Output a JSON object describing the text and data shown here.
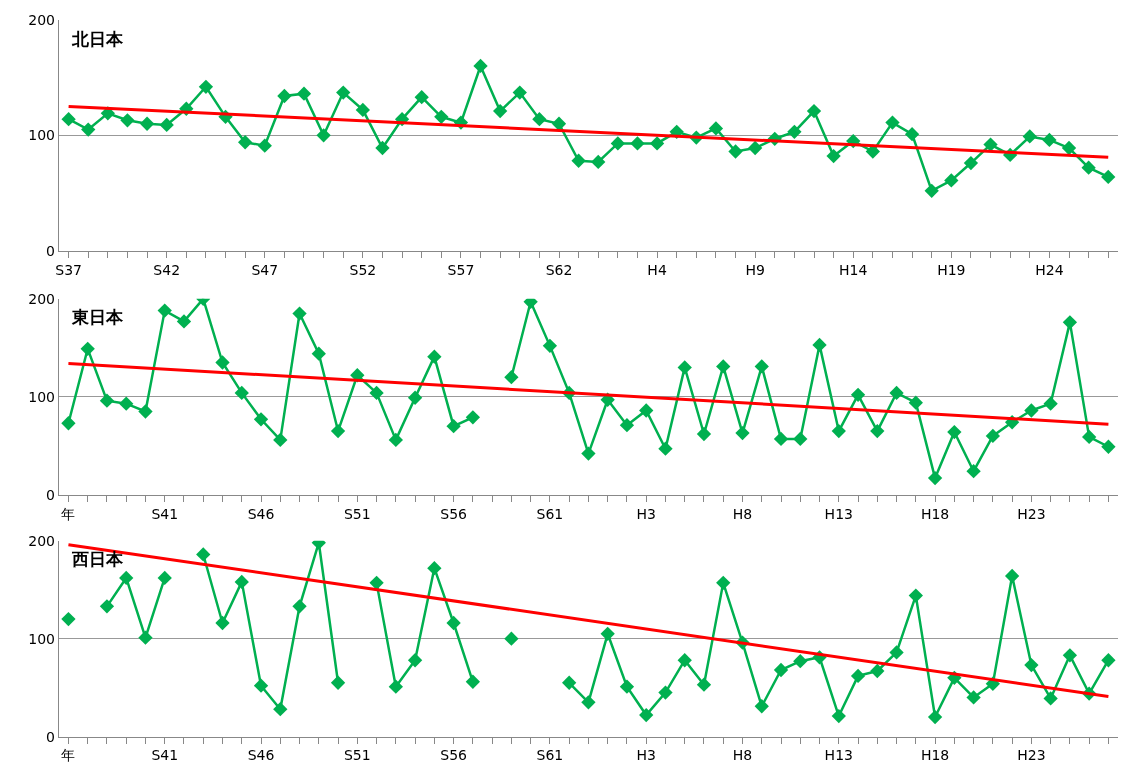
{
  "chart_data": [
    {
      "type": "line",
      "title": "北日本",
      "categories": [
        "S37",
        null,
        null,
        null,
        null,
        "S42",
        null,
        null,
        null,
        null,
        "S47",
        null,
        null,
        null,
        null,
        "S52",
        null,
        null,
        null,
        null,
        "S57",
        null,
        null,
        null,
        null,
        "S62",
        null,
        null,
        null,
        null,
        "H4",
        null,
        null,
        null,
        null,
        "H9",
        null,
        null,
        null,
        null,
        "H14",
        null,
        null,
        null,
        null,
        "H19",
        null,
        null,
        null,
        null,
        "H24",
        null,
        null,
        null
      ],
      "ylim": [
        0,
        200
      ],
      "yticks": [
        0,
        100,
        200
      ],
      "grid": "y",
      "marker": "diamond",
      "series": [
        {
          "color": "#00b050",
          "values": [
            114,
            105,
            119,
            113,
            110,
            109,
            123,
            142,
            116,
            94,
            91,
            134,
            136,
            100,
            137,
            122,
            89,
            114,
            133,
            116,
            111,
            160,
            121,
            137,
            114,
            110,
            78,
            77,
            93,
            93,
            93,
            103,
            98,
            106,
            86,
            89,
            97,
            103,
            121,
            82,
            95,
            86,
            111,
            101,
            52,
            61,
            76,
            92,
            83,
            99,
            96,
            89,
            72,
            64
          ]
        },
        {
          "color": "#ff0000",
          "marker": "none",
          "values": [
            125,
            null,
            null,
            null,
            null,
            null,
            null,
            null,
            null,
            null,
            null,
            null,
            null,
            null,
            null,
            null,
            null,
            null,
            null,
            null,
            null,
            null,
            null,
            null,
            null,
            null,
            null,
            null,
            null,
            null,
            null,
            null,
            null,
            null,
            null,
            null,
            null,
            null,
            null,
            null,
            null,
            null,
            null,
            null,
            null,
            null,
            null,
            null,
            null,
            null,
            null,
            null,
            null,
            81
          ]
        }
      ]
    },
    {
      "type": "line",
      "title": "東日本",
      "categories": [
        "年",
        null,
        null,
        null,
        null,
        "S41",
        null,
        null,
        null,
        null,
        "S46",
        null,
        null,
        null,
        null,
        "S51",
        null,
        null,
        null,
        null,
        "S56",
        null,
        null,
        null,
        null,
        "S61",
        null,
        null,
        null,
        null,
        "H3",
        null,
        null,
        null,
        null,
        "H8",
        null,
        null,
        null,
        null,
        "H13",
        null,
        null,
        null,
        null,
        "H18",
        null,
        null,
        null,
        null,
        "H23",
        null,
        null,
        null,
        null
      ],
      "ylim": [
        0,
        200
      ],
      "yticks": [
        0,
        100,
        200
      ],
      "grid": "y",
      "marker": "diamond",
      "series": [
        {
          "color": "#00b050",
          "values": [
            73,
            149,
            96,
            93,
            85,
            188,
            177,
            200,
            135,
            104,
            77,
            56,
            185,
            144,
            65,
            122,
            104,
            56,
            99,
            141,
            70,
            79,
            null,
            120,
            197,
            152,
            104,
            42,
            97,
            71,
            86,
            47,
            130,
            62,
            131,
            63,
            131,
            57,
            57,
            153,
            65,
            102,
            65,
            104,
            94,
            17,
            64,
            24,
            60,
            74,
            86,
            93,
            176,
            59,
            49
          ]
        },
        {
          "color": "#ff0000",
          "marker": "none",
          "values": [
            134,
            null,
            null,
            null,
            null,
            null,
            null,
            null,
            null,
            null,
            null,
            null,
            null,
            null,
            null,
            null,
            null,
            null,
            null,
            null,
            null,
            null,
            null,
            null,
            null,
            null,
            null,
            null,
            null,
            null,
            null,
            null,
            null,
            null,
            null,
            null,
            null,
            null,
            null,
            null,
            null,
            null,
            null,
            null,
            null,
            null,
            null,
            null,
            null,
            null,
            null,
            null,
            null,
            null,
            72
          ]
        }
      ]
    },
    {
      "type": "line",
      "title": "西日本",
      "categories": [
        "年",
        null,
        null,
        null,
        null,
        "S41",
        null,
        null,
        null,
        null,
        "S46",
        null,
        null,
        null,
        null,
        "S51",
        null,
        null,
        null,
        null,
        "S56",
        null,
        null,
        null,
        null,
        "S61",
        null,
        null,
        null,
        null,
        "H3",
        null,
        null,
        null,
        null,
        "H8",
        null,
        null,
        null,
        null,
        "H13",
        null,
        null,
        null,
        null,
        "H18",
        null,
        null,
        null,
        null,
        "H23",
        null,
        null,
        null,
        null
      ],
      "ylim": [
        0,
        200
      ],
      "yticks": [
        0,
        100,
        200
      ],
      "grid": "y",
      "marker": "diamond",
      "series": [
        {
          "color": "#00b050",
          "values": [
            120,
            null,
            133,
            162,
            101,
            162,
            null,
            186,
            116,
            158,
            52,
            28,
            133,
            198,
            55,
            null,
            157,
            51,
            78,
            172,
            116,
            56,
            null,
            100,
            null,
            null,
            55,
            35,
            105,
            51,
            22,
            45,
            78,
            53,
            157,
            96,
            31,
            68,
            77,
            81,
            21,
            62,
            67,
            86,
            144,
            20,
            60,
            40,
            54,
            164,
            73,
            39,
            83,
            44,
            78
          ]
        },
        {
          "color": "#ff0000",
          "marker": "none",
          "values": [
            196,
            null,
            null,
            null,
            null,
            null,
            null,
            null,
            null,
            null,
            null,
            null,
            null,
            null,
            null,
            null,
            null,
            null,
            null,
            null,
            null,
            null,
            null,
            null,
            null,
            null,
            null,
            null,
            null,
            null,
            null,
            null,
            null,
            null,
            null,
            null,
            null,
            null,
            null,
            null,
            null,
            null,
            null,
            null,
            null,
            null,
            null,
            null,
            null,
            null,
            null,
            null,
            null,
            null,
            41
          ]
        }
      ]
    }
  ]
}
